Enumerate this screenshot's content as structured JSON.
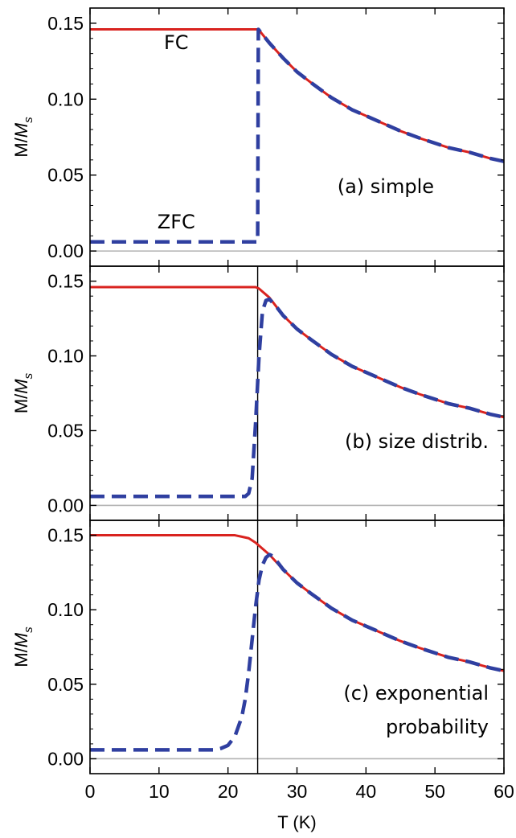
{
  "chart_data": {
    "type": "line",
    "layout": "three vertically stacked panels sharing a common x axis",
    "colors": {
      "fc": "#d9231f",
      "zfc": "#2f3fa0",
      "zero_line": "#b3b3b3",
      "vertical_marker": "#000000"
    },
    "xlabel": "T (K)",
    "xlim": [
      0,
      60
    ],
    "x_ticks": [
      0,
      10,
      20,
      30,
      40,
      50,
      60
    ],
    "x_tick_labels": [
      "0",
      "10",
      "20",
      "30",
      "40",
      "50",
      "60"
    ],
    "vertical_marker_x": 24.3,
    "panels": [
      {
        "id": "a",
        "ylabel_main": "M/",
        "ylabel_var": "M",
        "ylabel_sub": "s",
        "ylim": [
          -0.01,
          0.16
        ],
        "y_ticks": [
          0.0,
          0.05,
          0.1,
          0.15
        ],
        "y_tick_labels": [
          "0.00",
          "0.05",
          "0.10",
          "0.15"
        ],
        "show_vertical_marker": false,
        "annotation_lines": [
          "(a) simple"
        ],
        "curve_labels": [
          {
            "text": "FC",
            "x": 12.5,
            "y": 0.133
          },
          {
            "text": "ZFC",
            "x": 12.5,
            "y": 0.015
          }
        ],
        "series": [
          {
            "name": "FC",
            "style": "solid",
            "x": [
              0,
              24.4,
              26,
              28,
              30,
              32,
              35,
              38,
              40,
              42,
              45,
              48,
              50,
              52,
              55,
              58,
              60
            ],
            "y": [
              0.146,
              0.146,
              0.137,
              0.127,
              0.118,
              0.111,
              0.101,
              0.093,
              0.089,
              0.085,
              0.079,
              0.074,
              0.071,
              0.068,
              0.065,
              0.061,
              0.059
            ]
          },
          {
            "name": "ZFC",
            "style": "dashed",
            "x": [
              0,
              24.3,
              24.4,
              26,
              28,
              30,
              32,
              35,
              38,
              40,
              42,
              45,
              48,
              50,
              52,
              55,
              58,
              60
            ],
            "y": [
              0.006,
              0.006,
              0.146,
              0.137,
              0.127,
              0.118,
              0.111,
              0.101,
              0.093,
              0.089,
              0.085,
              0.079,
              0.074,
              0.071,
              0.068,
              0.065,
              0.061,
              0.059
            ]
          }
        ]
      },
      {
        "id": "b",
        "ylabel_main": "M/",
        "ylabel_var": "M",
        "ylabel_sub": "s",
        "ylim": [
          -0.01,
          0.16
        ],
        "y_ticks": [
          0.0,
          0.05,
          0.1,
          0.15
        ],
        "y_tick_labels": [
          "0.00",
          "0.05",
          "0.10",
          "0.15"
        ],
        "show_vertical_marker": true,
        "annotation_lines": [
          "(b) size distrib."
        ],
        "curve_labels": [],
        "series": [
          {
            "name": "FC",
            "style": "solid",
            "x": [
              0,
              23.5,
              24,
              24.5,
              25,
              25.5,
              26,
              27,
              28,
              30,
              32,
              35,
              38,
              40,
              42,
              45,
              48,
              50,
              52,
              55,
              58,
              60
            ],
            "y": [
              0.146,
              0.146,
              0.146,
              0.145,
              0.143,
              0.141,
              0.139,
              0.133,
              0.127,
              0.118,
              0.111,
              0.101,
              0.093,
              0.089,
              0.085,
              0.079,
              0.074,
              0.071,
              0.068,
              0.065,
              0.061,
              0.059
            ]
          },
          {
            "name": "ZFC",
            "style": "dashed",
            "x": [
              0,
              22.5,
              23,
              23.5,
              24,
              24.5,
              25,
              25.5,
              26,
              27,
              28,
              30,
              32,
              35,
              38,
              40,
              42,
              45,
              48,
              50,
              52,
              55,
              58,
              60
            ],
            "y": [
              0.006,
              0.006,
              0.008,
              0.018,
              0.055,
              0.1,
              0.13,
              0.137,
              0.138,
              0.133,
              0.127,
              0.118,
              0.111,
              0.101,
              0.093,
              0.089,
              0.085,
              0.079,
              0.074,
              0.071,
              0.068,
              0.065,
              0.061,
              0.059
            ]
          }
        ]
      },
      {
        "id": "c",
        "ylabel_main": "M/",
        "ylabel_var": "M",
        "ylabel_sub": "s",
        "ylim": [
          -0.01,
          0.16
        ],
        "y_ticks": [
          0.0,
          0.05,
          0.1,
          0.15
        ],
        "y_tick_labels": [
          "0.00",
          "0.05",
          "0.10",
          "0.15"
        ],
        "show_vertical_marker": true,
        "annotation_lines": [
          "(c) exponential",
          "probability"
        ],
        "curve_labels": [],
        "series": [
          {
            "name": "FC",
            "style": "solid",
            "x": [
              0,
              20,
              21,
              22,
              23,
              24,
              24.5,
              25,
              26,
              27,
              28,
              30,
              32,
              35,
              38,
              40,
              42,
              45,
              48,
              50,
              52,
              55,
              58,
              60
            ],
            "y": [
              0.15,
              0.15,
              0.15,
              0.149,
              0.148,
              0.145,
              0.143,
              0.141,
              0.137,
              0.132,
              0.127,
              0.118,
              0.111,
              0.101,
              0.093,
              0.089,
              0.085,
              0.079,
              0.074,
              0.071,
              0.068,
              0.065,
              0.061,
              0.059
            ]
          },
          {
            "name": "ZFC",
            "style": "dashed",
            "x": [
              0,
              18,
              19,
              20,
              21,
              22,
              22.5,
              23,
              23.5,
              24,
              24.5,
              25,
              25.5,
              26,
              26.5,
              27,
              28,
              30,
              32,
              35,
              38,
              40,
              42,
              45,
              48,
              50,
              52,
              55,
              58,
              60
            ],
            "y": [
              0.006,
              0.006,
              0.007,
              0.009,
              0.015,
              0.028,
              0.04,
              0.058,
              0.08,
              0.102,
              0.12,
              0.13,
              0.135,
              0.137,
              0.136,
              0.133,
              0.127,
              0.118,
              0.111,
              0.101,
              0.093,
              0.089,
              0.085,
              0.079,
              0.074,
              0.071,
              0.068,
              0.065,
              0.061,
              0.059
            ]
          }
        ]
      }
    ]
  }
}
